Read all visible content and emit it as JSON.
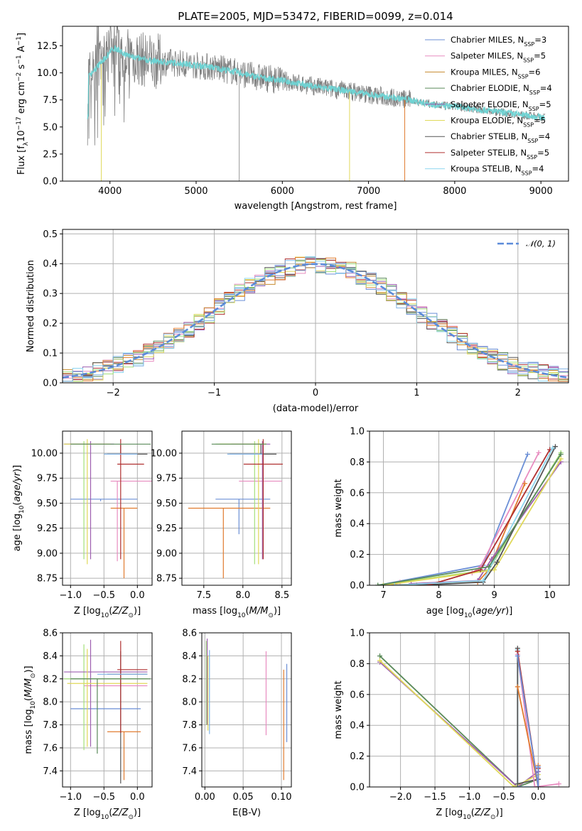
{
  "chart_data": [
    {
      "id": "spectrum",
      "type": "line",
      "title": "PLATE=2005, MJD=53472, FIBERID=0099, z=0.014",
      "xlabel": "wavelength [Angstrom, rest frame]",
      "ylabel": "Flux [f$_\\lambda$10$^{-17}$ erg cm$^{-2}$ s$^{-1}$ A$^{-1}$]",
      "ylabel_parts": [
        "Flux [f",
        "λ",
        "10",
        "−17",
        " erg cm",
        "−2",
        " s",
        "−1",
        " A",
        "−1",
        "]"
      ],
      "xlim": [
        3450,
        9320
      ],
      "ylim": [
        0,
        14.3
      ],
      "xticks": [
        4000,
        5000,
        6000,
        7000,
        8000,
        9000
      ],
      "yticks": [
        0.0,
        2.5,
        5.0,
        7.5,
        10.0,
        12.5
      ],
      "grid": false,
      "legend_position": "top-right",
      "data_profile": {
        "wavelength": [
          3750,
          3900,
          4050,
          4200,
          4400,
          4600,
          4800,
          5000,
          5200,
          5400,
          5600,
          5800,
          6000,
          6200,
          6400,
          6600,
          6800,
          7000,
          7200,
          7400,
          7600,
          7800,
          8000,
          8200,
          8400,
          8600,
          8800,
          9000
        ],
        "flux": [
          9.6,
          11.0,
          12.3,
          11.6,
          11.2,
          11.0,
          10.9,
          10.7,
          10.5,
          10.2,
          9.8,
          9.5,
          9.3,
          9.0,
          8.7,
          8.5,
          8.3,
          8.0,
          7.8,
          7.6,
          7.3,
          7.0,
          6.9,
          6.7,
          6.5,
          6.3,
          6.1,
          5.9
        ]
      },
      "series": [
        {
          "name": "Chabrier MILES, N$_{SSP}$=3",
          "label": "Chabrier MILES, N",
          "ssp": "3",
          "color": "#6b8fd6"
        },
        {
          "name": "Salpeter MILES, N$_{SSP}$=5",
          "label": "Salpeter MILES, N",
          "ssp": "5",
          "color": "#e88cc0"
        },
        {
          "name": "Kroupa MILES, N$_{SSP}$=6",
          "label": "Kroupa MILES, N",
          "ssp": "6",
          "color": "#c68a2e"
        },
        {
          "name": "Chabrier ELODIE, N$_{SSP}$=4",
          "label": "Chabrier ELODIE, N",
          "ssp": "4",
          "color": "#5a8a5a"
        },
        {
          "name": "Salpeter ELODIE, N$_{SSP}$=5",
          "label": "Salpeter ELODIE, N",
          "ssp": "5",
          "color": "#9d5fb0"
        },
        {
          "name": "Kroupa ELODIE, N$_{SSP}$=5",
          "label": "Kroupa ELODIE, N",
          "ssp": "5",
          "color": "#e0d95a"
        },
        {
          "name": "Chabrier STELIB, N$_{SSP}$=4",
          "label": "Chabrier STELIB, N",
          "ssp": "4",
          "color": "#555555"
        },
        {
          "name": "Salpeter STELIB, N$_{SSP}$=5",
          "label": "Salpeter STELIB, N",
          "ssp": "5",
          "color": "#b03030"
        },
        {
          "name": "Kroupa STELIB, N$_{SSP}$=4",
          "label": "Kroupa STELIB, N",
          "ssp": "4",
          "color": "#8fd6f0"
        }
      ]
    },
    {
      "id": "residuals",
      "type": "histogram",
      "xlabel": "(data-model)/error",
      "ylabel": "Normed distribution",
      "xlim": [
        -2.5,
        2.5
      ],
      "ylim": [
        0,
        0.515
      ],
      "xticks": [
        -2,
        -1,
        0,
        1,
        2
      ],
      "yticks": [
        0.0,
        0.1,
        0.2,
        0.3,
        0.4,
        0.5
      ],
      "grid": true,
      "legend_position": "top-right",
      "legend": "𝒩(0, 1)",
      "reference_curve": {
        "name": "N(0,1)",
        "mean": 0,
        "sigma": 1,
        "color": "#5b8bd9"
      },
      "bin_width": 0.1,
      "colors": [
        "#6b8fd6",
        "#e88cc0",
        "#c68a2e",
        "#5a8a5a",
        "#9d5fb0",
        "#e0d95a",
        "#555555",
        "#b03030",
        "#8fd6f0",
        "#e07b2f",
        "#a4e07a",
        "#7fb3e6"
      ]
    },
    {
      "id": "age_vs_Z",
      "type": "errorbar",
      "xlabel": "Z [log$_{10}$(Z/Z$_\\odot$)]",
      "ylabel": "age  [log$_{10}$(age/yr)]",
      "xlim": [
        -1.12,
        0.22
      ],
      "ylim": [
        8.68,
        10.22
      ],
      "xticks": [
        -1.0,
        -0.5,
        0.0
      ],
      "yticks": [
        8.75,
        9.0,
        9.25,
        9.5,
        9.75,
        10.0
      ],
      "grid": true,
      "points": [
        {
          "x": -0.55,
          "y": 9.54,
          "xerr": [
            0.45,
            0.55
          ],
          "yerr": [
            0.02,
            0.0
          ],
          "color": "#6b8fd6"
        },
        {
          "x": -0.3,
          "y": 9.72,
          "xerr": [
            0.1,
            0.55
          ],
          "yerr": [
            0.8,
            0.0
          ],
          "color": "#e88cc0"
        },
        {
          "x": -0.2,
          "y": 9.45,
          "xerr": [
            0.2,
            0.2
          ],
          "yerr": [
            0.7,
            0.0
          ],
          "color": "#e07b2f"
        },
        {
          "x": -0.8,
          "y": 10.09,
          "xerr": [
            0.3,
            0.0
          ],
          "yerr": [
            1.15,
            0.03
          ],
          "color": "#a4e07a"
        },
        {
          "x": -0.7,
          "y": 10.09,
          "xerr": [
            0.4,
            0.35
          ],
          "yerr": [
            1.15,
            0.03
          ],
          "color": "#9d5fb0"
        },
        {
          "x": -0.75,
          "y": 10.09,
          "xerr": [
            0.35,
            0.35
          ],
          "yerr": [
            1.2,
            0.05
          ],
          "color": "#e0d95a"
        },
        {
          "x": -0.25,
          "y": 9.99,
          "xerr": [
            0.2,
            0.4
          ],
          "yerr": [
            0.0,
            0.1
          ],
          "color": "#555555"
        },
        {
          "x": -0.25,
          "y": 9.89,
          "xerr": [
            0.05,
            0.35
          ],
          "yerr": [
            0.95,
            0.25
          ],
          "color": "#b03030"
        },
        {
          "x": -0.1,
          "y": 9.99,
          "xerr": [
            0.4,
            0.1
          ],
          "yerr": [
            0.0,
            0.0
          ],
          "color": "#7fb3e6"
        },
        {
          "x": -0.6,
          "y": 10.09,
          "xerr": [
            0.4,
            0.8
          ],
          "yerr": [
            0.0,
            0.0
          ],
          "color": "#5a8a5a"
        }
      ]
    },
    {
      "id": "age_vs_mass",
      "type": "errorbar",
      "xlabel": "mass [log$_{10}$(M/M$_\\odot$)]",
      "ylabel": "",
      "xlim": [
        7.22,
        8.62
      ],
      "ylim": [
        8.68,
        10.22
      ],
      "xticks": [
        7.5,
        8.0,
        8.5
      ],
      "yticks": [
        8.75,
        9.0,
        9.25,
        9.5,
        9.75,
        10.0
      ],
      "grid": true,
      "points": [
        {
          "x": 7.95,
          "y": 9.54,
          "xerr": [
            0.3,
            0.4
          ],
          "yerr": [
            0.35,
            0.0
          ],
          "color": "#6b8fd6"
        },
        {
          "x": 8.15,
          "y": 9.72,
          "xerr": [
            0.2,
            0.35
          ],
          "yerr": [
            0.0,
            0.0
          ],
          "color": "#e88cc0"
        },
        {
          "x": 7.75,
          "y": 9.45,
          "xerr": [
            0.45,
            0.6
          ],
          "yerr": [
            0.7,
            0.0
          ],
          "color": "#e07b2f"
        },
        {
          "x": 8.15,
          "y": 10.09,
          "xerr": [
            0.5,
            0.15
          ],
          "yerr": [
            1.2,
            0.03
          ],
          "color": "#a4e07a"
        },
        {
          "x": 8.25,
          "y": 10.09,
          "xerr": [
            0.4,
            0.1
          ],
          "yerr": [
            1.15,
            0.03
          ],
          "color": "#9d5fb0"
        },
        {
          "x": 8.2,
          "y": 10.09,
          "xerr": [
            0.5,
            0.1
          ],
          "yerr": [
            1.2,
            0.05
          ],
          "color": "#e0d95a"
        },
        {
          "x": 8.23,
          "y": 9.99,
          "xerr": [
            0.4,
            0.2
          ],
          "yerr": [
            0.0,
            0.1
          ],
          "color": "#555555"
        },
        {
          "x": 8.26,
          "y": 9.89,
          "xerr": [
            0.25,
            0.25
          ],
          "yerr": [
            0.95,
            0.25
          ],
          "color": "#b03030"
        },
        {
          "x": 8.1,
          "y": 9.99,
          "xerr": [
            0.3,
            0.15
          ],
          "yerr": [
            0.0,
            0.0
          ],
          "color": "#7fb3e6"
        },
        {
          "x": 8.0,
          "y": 10.09,
          "xerr": [
            0.4,
            0.3
          ],
          "yerr": [
            0.0,
            0.0
          ],
          "color": "#5a8a5a"
        }
      ]
    },
    {
      "id": "weight_vs_age",
      "type": "line",
      "xlabel": "age  [log$_{10}$(age/yr)]",
      "ylabel": "mass weight",
      "xlim": [
        6.75,
        10.35
      ],
      "ylim": [
        0,
        1.0
      ],
      "xticks": [
        7,
        8,
        9,
        10
      ],
      "yticks": [
        0.0,
        0.2,
        0.4,
        0.6,
        0.8,
        1.0
      ],
      "grid": true,
      "series": [
        {
          "color": "#6b8fd6",
          "x": [
            6.9,
            8.8,
            9.6
          ],
          "y": [
            0.0,
            0.13,
            0.85
          ]
        },
        {
          "color": "#e88cc0",
          "x": [
            7.3,
            8.6,
            8.75,
            9.8
          ],
          "y": [
            0.02,
            0.08,
            0.12,
            0.86
          ]
        },
        {
          "color": "#e07b2f",
          "x": [
            7.0,
            8.7,
            8.9,
            9.55
          ],
          "y": [
            0.0,
            0.02,
            0.1,
            0.66
          ]
        },
        {
          "color": "#a4e07a",
          "x": [
            6.9,
            8.9,
            10.2
          ],
          "y": [
            0.0,
            0.1,
            0.86
          ]
        },
        {
          "color": "#9d5fb0",
          "x": [
            7.5,
            8.7,
            8.95,
            10.2
          ],
          "y": [
            0.01,
            0.03,
            0.17,
            0.8
          ]
        },
        {
          "color": "#e0d95a",
          "x": [
            7.0,
            9.0,
            10.2
          ],
          "y": [
            0.0,
            0.1,
            0.82
          ]
        },
        {
          "color": "#555555",
          "x": [
            7.6,
            8.8,
            9.05,
            10.1
          ],
          "y": [
            0.0,
            0.02,
            0.15,
            0.9
          ]
        },
        {
          "color": "#b03030",
          "x": [
            7.8,
            8.75,
            10.0
          ],
          "y": [
            0.0,
            0.1,
            0.88
          ]
        },
        {
          "color": "#8fd6f0",
          "x": [
            7.2,
            8.8,
            10.05
          ],
          "y": [
            0.0,
            0.03,
            0.89
          ]
        },
        {
          "color": "#5a8a5a",
          "x": [
            6.9,
            8.9,
            10.2
          ],
          "y": [
            0.0,
            0.12,
            0.85
          ]
        }
      ]
    },
    {
      "id": "mass_vs_Z",
      "type": "errorbar",
      "xlabel": "Z [log$_{10}$(Z/Z$_\\odot$)]",
      "ylabel": "mass [log$_{10}$(M/M$_\\odot$)]",
      "xlim": [
        -1.12,
        0.22
      ],
      "ylim": [
        7.26,
        8.6
      ],
      "xticks": [
        -1.0,
        -0.5,
        0.0
      ],
      "yticks": [
        7.4,
        7.6,
        7.8,
        8.0,
        8.2,
        8.4,
        8.6
      ],
      "grid": true,
      "points": [
        {
          "x": -0.55,
          "y": 7.94,
          "xerr": [
            0.45,
            0.6
          ],
          "yerr": [
            0.0,
            0.0
          ],
          "color": "#6b8fd6"
        },
        {
          "x": -0.3,
          "y": 8.14,
          "xerr": [
            0.5,
            0.45
          ],
          "yerr": [
            0.0,
            0.0
          ],
          "color": "#e88cc0"
        },
        {
          "x": -0.2,
          "y": 7.74,
          "xerr": [
            0.25,
            0.25
          ],
          "yerr": [
            0.42,
            0.0
          ],
          "color": "#e07b2f"
        },
        {
          "x": -0.8,
          "y": 8.2,
          "xerr": [
            0.3,
            0.95
          ],
          "yerr": [
            0.62,
            0.3
          ],
          "color": "#a4e07a"
        },
        {
          "x": -0.7,
          "y": 8.26,
          "xerr": [
            0.4,
            0.85
          ],
          "yerr": [
            0.65,
            0.28
          ],
          "color": "#9d5fb0"
        },
        {
          "x": -0.75,
          "y": 8.16,
          "xerr": [
            0.3,
            0.9
          ],
          "yerr": [
            0.55,
            0.3
          ],
          "color": "#e0d95a"
        },
        {
          "x": -0.25,
          "y": 8.24,
          "xerr": [
            0.2,
            0.4
          ],
          "yerr": [
            0.95,
            0.2
          ],
          "color": "#555555"
        },
        {
          "x": -0.25,
          "y": 8.28,
          "xerr": [
            0.05,
            0.4
          ],
          "yerr": [
            0.55,
            0.25
          ],
          "color": "#b03030"
        },
        {
          "x": -0.2,
          "y": 8.24,
          "xerr": [
            0.4,
            0.35
          ],
          "yerr": [
            0.0,
            0.0
          ],
          "color": "#7fb3e6"
        },
        {
          "x": -0.6,
          "y": 8.2,
          "xerr": [
            0.4,
            0.8
          ],
          "yerr": [
            0.65,
            0.0
          ],
          "color": "#5a8a5a"
        }
      ]
    },
    {
      "id": "mass_vs_EBV",
      "type": "errorbar",
      "xlabel": "E(B-V)",
      "ylabel": "",
      "xlim": [
        -0.004,
        0.113
      ],
      "ylim": [
        7.26,
        8.6
      ],
      "xticks": [
        0.0,
        0.05,
        0.1
      ],
      "yticks": [
        7.4,
        7.6,
        7.8,
        8.0,
        8.2,
        8.4,
        8.6
      ],
      "grid": true,
      "points": [
        {
          "x": 0.002,
          "y": 8.15,
          "yerr": [
            0.35,
            0.38
          ],
          "color": "#a4e07a"
        },
        {
          "x": 0.003,
          "y": 8.2,
          "yerr": [
            0.4,
            0.35
          ],
          "color": "#9d5fb0"
        },
        {
          "x": 0.004,
          "y": 8.1,
          "yerr": [
            0.35,
            0.3
          ],
          "color": "#e0d95a"
        },
        {
          "x": 0.006,
          "y": 8.1,
          "yerr": [
            0.38,
            0.35
          ],
          "color": "#7fb3e6"
        },
        {
          "x": 0.08,
          "y": 8.06,
          "yerr": [
            0.35,
            0.38
          ],
          "color": "#e88cc0"
        },
        {
          "x": 0.103,
          "y": 7.8,
          "yerr": [
            0.48,
            0.48
          ],
          "color": "#e07b2f"
        },
        {
          "x": 0.107,
          "y": 8.0,
          "yerr": [
            0.35,
            0.33
          ],
          "color": "#6b8fd6"
        }
      ]
    },
    {
      "id": "weight_vs_Z",
      "type": "line",
      "xlabel": "Z [log$_{10}$(Z/Z$_\\odot$)]",
      "ylabel": "mass weight",
      "xlim": [
        -2.45,
        0.45
      ],
      "ylim": [
        0,
        1.0
      ],
      "xticks": [
        -2.0,
        -1.5,
        -1.0,
        -0.5,
        0.0
      ],
      "yticks": [
        0.0,
        0.2,
        0.4,
        0.6,
        0.8,
        1.0
      ],
      "grid": true,
      "series": [
        {
          "color": "#5a8a5a",
          "x": [
            -2.3,
            -0.3,
            0.0
          ],
          "y": [
            0.85,
            0.0,
            0.05
          ]
        },
        {
          "color": "#9d5fb0",
          "x": [
            -2.3,
            -0.3,
            0.0
          ],
          "y": [
            0.81,
            0.0,
            0.1
          ]
        },
        {
          "color": "#e0d95a",
          "x": [
            -2.3,
            -0.35,
            0.0
          ],
          "y": [
            0.82,
            0.0,
            0.08
          ]
        },
        {
          "color": "#8fd6f0",
          "x": [
            -0.3,
            -0.3,
            0.0
          ],
          "y": [
            0.89,
            0.0,
            0.0
          ]
        },
        {
          "color": "#555555",
          "x": [
            -0.3,
            -0.3,
            0.0
          ],
          "y": [
            0.9,
            0.02,
            0.05
          ]
        },
        {
          "color": "#e88cc0",
          "x": [
            -0.3,
            -0.05,
            0.3
          ],
          "y": [
            0.86,
            0.0,
            0.02
          ]
        },
        {
          "color": "#e07b2f",
          "x": [
            -0.3,
            0.0,
            0.0
          ],
          "y": [
            0.65,
            0.0,
            0.14
          ]
        },
        {
          "color": "#b03030",
          "x": [
            -0.3,
            0.0,
            0.0
          ],
          "y": [
            0.88,
            0.0,
            0.12
          ]
        },
        {
          "color": "#6b8fd6",
          "x": [
            -0.3,
            0.0,
            0.0
          ],
          "y": [
            0.85,
            0.0,
            0.13
          ]
        }
      ]
    }
  ]
}
